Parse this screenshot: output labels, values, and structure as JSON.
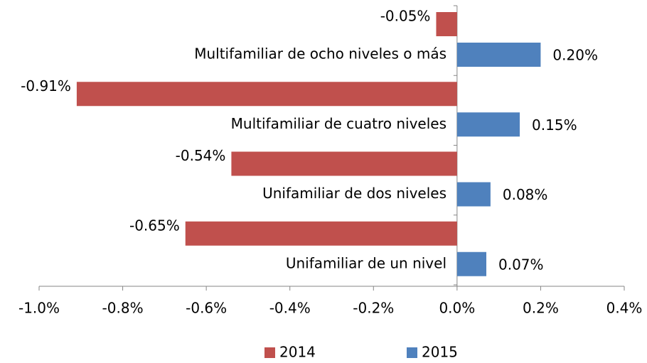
{
  "chart_data": {
    "type": "barh",
    "categories": [
      "Multifamiliar de ocho niveles o más",
      "Multifamiliar de cuatro niveles",
      "Unifamiliar de dos niveles",
      "Unifamiliar de un nivel"
    ],
    "series": [
      {
        "name": "2014",
        "color": "#c0504d",
        "values": [
          -0.05,
          -0.91,
          -0.54,
          -0.65
        ],
        "value_labels": [
          "-0.05%",
          "-0.91%",
          "-0.54%",
          "-0.65%"
        ]
      },
      {
        "name": "2015",
        "color": "#4f81bd",
        "values": [
          0.2,
          0.15,
          0.08,
          0.07
        ],
        "value_labels": [
          "0.20%",
          "0.15%",
          "0.08%",
          "0.07%"
        ]
      }
    ],
    "xlim": [
      -1.0,
      0.4
    ],
    "xticks": [
      {
        "value": -1.0,
        "label": "-1.0%"
      },
      {
        "value": -0.8,
        "label": "-0.8%"
      },
      {
        "value": -0.6,
        "label": "-0.6%"
      },
      {
        "value": -0.4,
        "label": "-0.4%"
      },
      {
        "value": -0.2,
        "label": "-0.2%"
      },
      {
        "value": 0.0,
        "label": "0.0%"
      },
      {
        "value": 0.2,
        "label": "0.2%"
      },
      {
        "value": 0.4,
        "label": "0.4%"
      }
    ],
    "legend": "bottom"
  }
}
